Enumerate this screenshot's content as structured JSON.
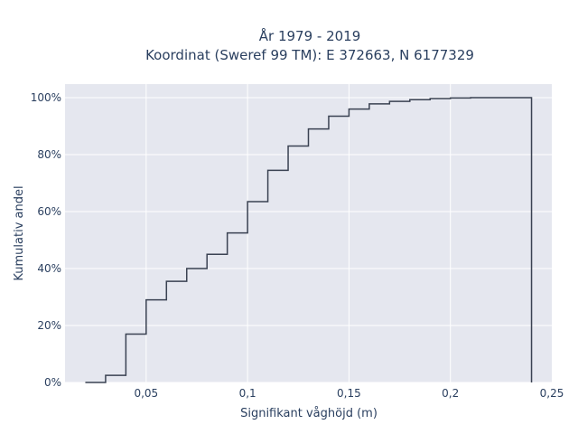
{
  "chart_data": {
    "type": "line",
    "shape": "step",
    "title": "År 1979 - 2019",
    "subtitle": "Koordinat (Sweref 99 TM): E 372663, N 6177329",
    "xlabel": "Signifikant våghöjd (m)",
    "ylabel": "Kumulativ andel",
    "xlim": [
      0.01,
      0.25
    ],
    "ylim": [
      0,
      1.05
    ],
    "x_ticks": [
      0.05,
      0.1,
      0.15,
      0.2,
      0.25
    ],
    "x_tick_labels": [
      "0,05",
      "0,1",
      "0,15",
      "0,2",
      "0,25"
    ],
    "y_ticks": [
      0,
      0.2,
      0.4,
      0.6,
      0.8,
      1.0
    ],
    "y_tick_labels": [
      "0%",
      "20%",
      "40%",
      "60%",
      "80%",
      "100%"
    ],
    "grid": true,
    "legend": "none",
    "line_color": "#3a4252",
    "plot_bg": "#e5e7ef",
    "x": [
      0.02,
      0.03,
      0.04,
      0.05,
      0.06,
      0.07,
      0.08,
      0.09,
      0.1,
      0.11,
      0.12,
      0.13,
      0.14,
      0.15,
      0.16,
      0.17,
      0.18,
      0.19,
      0.2,
      0.21,
      0.22,
      0.23,
      0.24
    ],
    "values": [
      0.0,
      0.025,
      0.17,
      0.29,
      0.355,
      0.4,
      0.45,
      0.525,
      0.635,
      0.745,
      0.83,
      0.89,
      0.935,
      0.96,
      0.978,
      0.987,
      0.993,
      0.997,
      0.999,
      1.0,
      1.0,
      1.0,
      0.0
    ]
  }
}
